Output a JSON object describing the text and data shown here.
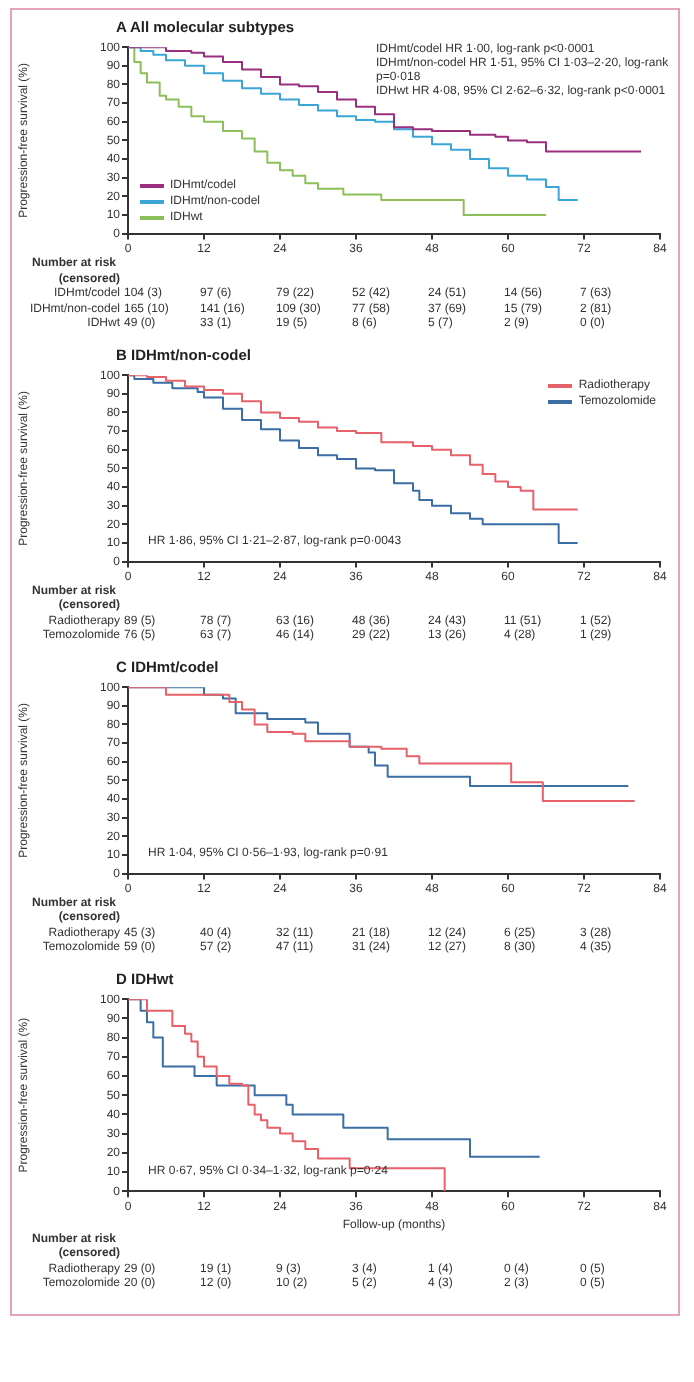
{
  "chart_data": [
    {
      "type": "step",
      "title": "A All molecular subtypes",
      "ylabel": "Progression-free survival (%)",
      "xlim": [
        0,
        84
      ],
      "xticks": [
        0,
        12,
        24,
        36,
        48,
        60,
        72,
        84
      ],
      "ylim": [
        0,
        100
      ],
      "yticks": [
        0,
        10,
        20,
        30,
        40,
        50,
        60,
        70,
        80,
        90,
        100
      ],
      "grid": false,
      "legend": "bottom left",
      "series": [
        {
          "name": "IDHmt/codel",
          "color": "#9b2f7f",
          "x": [
            0,
            3,
            6,
            10,
            12,
            15,
            18,
            21,
            24,
            27,
            30,
            33,
            36,
            39,
            42,
            45,
            48,
            52,
            54,
            58,
            60,
            63,
            66,
            81
          ],
          "values": [
            100,
            100,
            98,
            97,
            95,
            92,
            88,
            84,
            80,
            79,
            76,
            72,
            68,
            64,
            57,
            56,
            55,
            55,
            53,
            52,
            50,
            49,
            44,
            44
          ]
        },
        {
          "name": "IDHmt/non-codel",
          "color": "#3aa6d8",
          "x": [
            0,
            2,
            4,
            6,
            9,
            12,
            15,
            18,
            21,
            24,
            27,
            30,
            33,
            36,
            39,
            42,
            45,
            48,
            51,
            54,
            57,
            60,
            63,
            66,
            68,
            71
          ],
          "values": [
            100,
            98,
            96,
            93,
            90,
            86,
            82,
            78,
            75,
            72,
            69,
            66,
            63,
            61,
            60,
            56,
            52,
            48,
            45,
            40,
            35,
            31,
            29,
            25,
            18,
            18
          ]
        },
        {
          "name": "IDHwt",
          "color": "#8cbf5a",
          "x": [
            0,
            1,
            2,
            3,
            5,
            6,
            8,
            10,
            12,
            15,
            18,
            20,
            22,
            24,
            26,
            28,
            30,
            34,
            40,
            48,
            53,
            66
          ],
          "values": [
            100,
            92,
            86,
            81,
            74,
            72,
            68,
            63,
            60,
            55,
            51,
            44,
            38,
            34,
            31,
            27,
            24,
            21,
            18,
            18,
            10,
            10
          ]
        }
      ],
      "annotations": [
        "IDHmt/codel HR 1·00, log-rank p<0·0001",
        "IDHmt/non-codel HR 1·51, 95% CI 1·03–2·20, log-rank p=0·018",
        "IDHwt HR 4·08, 95% CI 2·62–6·32, log-rank p<0·0001",
        "Number at risk",
        "(censored)",
        "IDHmt/codel",
        "104 (3)",
        "97 (6)",
        "79 (22)",
        "52 (42)",
        "24 (51)",
        "14 (56)",
        "7 (63)",
        "IDHmt/non-codel",
        "165 (10)",
        "141 (16)",
        "109 (30)",
        "77 (58)",
        "37 (69)",
        "15 (79)",
        "2 (81)",
        "IDHwt",
        "49 (0)",
        "33 (1)",
        "19 (5)",
        "8 (6)",
        "5 (7)",
        "2 (9)",
        "0 (0)"
      ]
    },
    {
      "type": "step",
      "title": "B IDHmt/non-codel",
      "ylabel": "Progression-free survival (%)",
      "xlim": [
        0,
        84
      ],
      "xticks": [
        0,
        12,
        24,
        36,
        48,
        60,
        72,
        84
      ],
      "ylim": [
        0,
        100
      ],
      "yticks": [
        0,
        10,
        20,
        30,
        40,
        50,
        60,
        70,
        80,
        90,
        100
      ],
      "grid": false,
      "legend": "top right",
      "series": [
        {
          "name": "Radiotherapy",
          "color": "#e8606a",
          "x": [
            0,
            3,
            6,
            9,
            12,
            15,
            18,
            21,
            24,
            27,
            30,
            33,
            36,
            40,
            45,
            48,
            51,
            54,
            56,
            58,
            60,
            62,
            64,
            71
          ],
          "values": [
            100,
            99,
            97,
            94,
            92,
            90,
            86,
            80,
            77,
            75,
            72,
            70,
            69,
            64,
            62,
            60,
            57,
            52,
            47,
            43,
            40,
            38,
            28,
            28
          ]
        },
        {
          "name": "Temozolomide",
          "color": "#3a6ea5",
          "x": [
            0,
            1,
            4,
            7,
            11,
            12,
            15,
            18,
            21,
            24,
            27,
            30,
            33,
            36,
            39,
            42,
            45,
            46,
            48,
            51,
            54,
            56,
            67,
            68,
            71
          ],
          "values": [
            100,
            98,
            96,
            93,
            91,
            88,
            82,
            76,
            71,
            65,
            61,
            57,
            55,
            50,
            49,
            42,
            38,
            33,
            30,
            26,
            23,
            20,
            20,
            10,
            10
          ]
        }
      ],
      "annotations": [
        "HR 1·86, 95% CI 1·21–2·87, log-rank p=0·0043",
        "Number at risk",
        "(censored)",
        "Radiotherapy",
        "89 (5)",
        "78 (7)",
        "63 (16)",
        "48 (36)",
        "24 (43)",
        "11 (51)",
        "1 (52)",
        "Temozolomide",
        "76 (5)",
        "63 (7)",
        "46 (14)",
        "29 (22)",
        "13 (26)",
        "4 (28)",
        "1 (29)"
      ]
    },
    {
      "type": "step",
      "title": "C IDHmt/codel",
      "ylabel": "Progression-free survival (%)",
      "xlim": [
        0,
        84
      ],
      "xticks": [
        0,
        12,
        24,
        36,
        48,
        60,
        72,
        84
      ],
      "ylim": [
        0,
        100
      ],
      "yticks": [
        0,
        10,
        20,
        30,
        40,
        50,
        60,
        70,
        80,
        90,
        100
      ],
      "grid": false,
      "series": [
        {
          "color": "#e8606a",
          "x": [
            0,
            6,
            16,
            18,
            20,
            22,
            26,
            28,
            35,
            40,
            44,
            46,
            60,
            60.5,
            65,
            65.5,
            80
          ],
          "values": [
            100,
            96,
            92,
            88,
            80,
            76,
            75,
            71,
            68,
            67,
            63,
            59,
            59,
            49,
            49,
            39,
            39
          ]
        },
        {
          "color": "#3a6ea5",
          "x": [
            0,
            12,
            15,
            17,
            20,
            22,
            28,
            30,
            34,
            35,
            38,
            39,
            41,
            53,
            54,
            79
          ],
          "values": [
            100,
            96,
            94,
            86,
            86,
            83,
            81,
            75,
            75,
            68,
            65,
            58,
            52,
            52,
            47,
            47
          ]
        }
      ],
      "annotations": [
        "HR 1·04, 95% CI 0·56–1·93, log-rank p=0·91",
        "Number at risk",
        "(censored)",
        "Radiotherapy",
        "45 (3)",
        "40 (4)",
        "32 (11)",
        "21 (18)",
        "12 (24)",
        "6 (25)",
        "3 (28)",
        "Temozolomide",
        "59 (0)",
        "57 (2)",
        "47 (11)",
        "31 (24)",
        "12 (27)",
        "8 (30)",
        "4 (35)"
      ]
    },
    {
      "type": "step",
      "title": "D IDHwt",
      "xlabel": "Follow-up (months)",
      "ylabel": "Progression-free survival (%)",
      "xlim": [
        0,
        84
      ],
      "xticks": [
        0,
        12,
        24,
        36,
        48,
        60,
        72,
        84
      ],
      "ylim": [
        0,
        100
      ],
      "yticks": [
        0,
        10,
        20,
        30,
        40,
        50,
        60,
        70,
        80,
        90,
        100
      ],
      "grid": false,
      "series": [
        {
          "color": "#e8606a",
          "x": [
            0,
            3,
            7,
            9,
            10,
            11,
            12,
            14,
            16,
            18,
            19,
            20,
            21,
            22,
            24,
            26,
            28,
            30,
            35,
            50
          ],
          "values": [
            100,
            94,
            86,
            82,
            78,
            70,
            65,
            60,
            56,
            55,
            45,
            40,
            37,
            33,
            30,
            26,
            22,
            17,
            12,
            0
          ]
        },
        {
          "color": "#3a6ea5",
          "x": [
            0,
            2,
            3,
            4,
            5.5,
            10.5,
            14,
            20,
            25,
            26,
            34,
            41,
            54,
            65
          ],
          "values": [
            100,
            94,
            88,
            80,
            65,
            60,
            55,
            50,
            45,
            40,
            33,
            27,
            18,
            18
          ]
        }
      ],
      "annotations": [
        "HR 0·67, 95% CI 0·34–1·32, log-rank p=0·24",
        "Number at risk",
        "(censored)",
        "Radiotherapy",
        "29 (0)",
        "19 (1)",
        "9 (3)",
        "3 (4)",
        "1 (4)",
        "0 (4)",
        "0 (5)",
        "Temozolomide",
        "20 (0)",
        "12 (0)",
        "10 (2)",
        "5 (2)",
        "4 (3)",
        "2 (3)",
        "0 (5)"
      ]
    }
  ]
}
